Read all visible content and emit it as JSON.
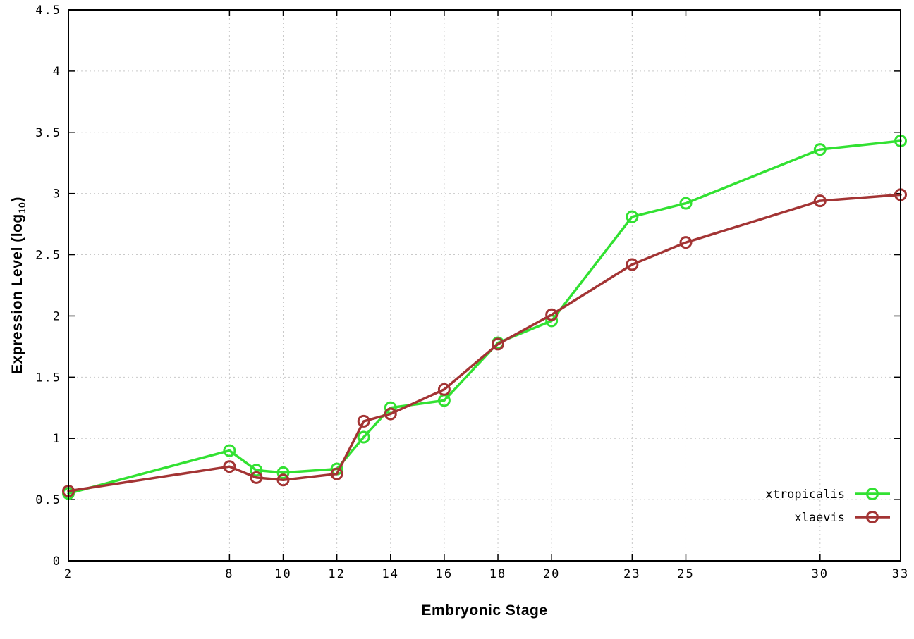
{
  "chart_data": {
    "type": "line",
    "title": "",
    "xlabel": "Embryonic Stage",
    "ylabel": "Expression Level (log10)",
    "ylabel_parts": {
      "pre": "Expression Level (log",
      "sub": "10",
      "post": ")"
    },
    "xlim": [
      2,
      33
    ],
    "ylim": [
      0,
      4.5
    ],
    "x_ticks": [
      2,
      8,
      10,
      12,
      14,
      16,
      18,
      20,
      23,
      25,
      30,
      33
    ],
    "y_ticks": [
      0,
      0.5,
      1,
      1.5,
      2,
      2.5,
      3,
      3.5,
      4,
      4.5
    ],
    "grid": true,
    "grid_color": "#c9c9c9",
    "border_color": "#000000",
    "legend_position": "bottom-right",
    "x": [
      2,
      8,
      9,
      10,
      12,
      13,
      14,
      16,
      18,
      20,
      23,
      25,
      30,
      33
    ],
    "series": [
      {
        "name": "xtropicalis",
        "color": "#32e132",
        "values": [
          0.55,
          0.9,
          0.74,
          0.72,
          0.75,
          1.01,
          1.25,
          1.31,
          1.78,
          1.96,
          2.81,
          2.92,
          3.36,
          3.43
        ]
      },
      {
        "name": "xlaevis",
        "color": "#a33434",
        "values": [
          0.57,
          0.77,
          0.68,
          0.66,
          0.71,
          1.14,
          1.2,
          1.4,
          1.77,
          2.01,
          2.42,
          2.6,
          2.94,
          2.99
        ]
      }
    ]
  }
}
